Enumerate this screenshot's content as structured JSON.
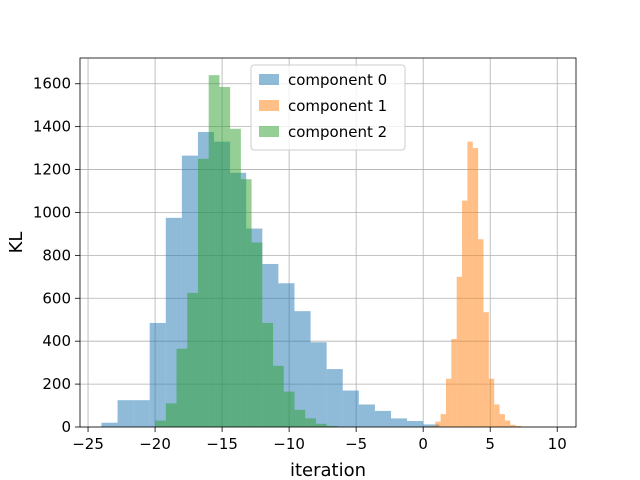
{
  "chart_data": {
    "type": "histogram",
    "xlabel": "iteration",
    "ylabel": "KL",
    "xlim": [
      -25.6,
      11.4
    ],
    "ylim": [
      0,
      1720
    ],
    "xticks": [
      -25,
      -20,
      -15,
      -10,
      -5,
      0,
      5,
      10
    ],
    "yticks": [
      0,
      200,
      400,
      600,
      800,
      1000,
      1200,
      1400,
      1600
    ],
    "grid": true,
    "legend_position": "upper center",
    "series": [
      {
        "name": "component 0",
        "color": "#1f77b4",
        "bins": [
          {
            "x0": -24.0,
            "x1": -22.8,
            "count": 20
          },
          {
            "x0": -22.8,
            "x1": -21.6,
            "count": 125
          },
          {
            "x0": -21.6,
            "x1": -20.4,
            "count": 125
          },
          {
            "x0": -20.4,
            "x1": -19.2,
            "count": 485
          },
          {
            "x0": -19.2,
            "x1": -18.0,
            "count": 975
          },
          {
            "x0": -18.0,
            "x1": -16.8,
            "count": 1265
          },
          {
            "x0": -16.8,
            "x1": -15.6,
            "count": 1375
          },
          {
            "x0": -15.6,
            "x1": -14.4,
            "count": 1330
          },
          {
            "x0": -14.4,
            "x1": -13.2,
            "count": 1185
          },
          {
            "x0": -13.2,
            "x1": -12.0,
            "count": 925
          },
          {
            "x0": -12.0,
            "x1": -10.8,
            "count": 760
          },
          {
            "x0": -10.8,
            "x1": -9.6,
            "count": 670
          },
          {
            "x0": -9.6,
            "x1": -8.4,
            "count": 540
          },
          {
            "x0": -8.4,
            "x1": -7.2,
            "count": 395
          },
          {
            "x0": -7.2,
            "x1": -6.0,
            "count": 270
          },
          {
            "x0": -6.0,
            "x1": -4.8,
            "count": 170
          },
          {
            "x0": -4.8,
            "x1": -3.6,
            "count": 105
          },
          {
            "x0": -3.6,
            "x1": -2.4,
            "count": 75
          },
          {
            "x0": -2.4,
            "x1": -1.2,
            "count": 40
          },
          {
            "x0": -1.2,
            "x1": 0.0,
            "count": 28
          },
          {
            "x0": 0.0,
            "x1": 1.2,
            "count": 12
          }
        ]
      },
      {
        "name": "component 1",
        "color": "#ff7f0e",
        "bins": [
          {
            "x0": 0.5,
            "x1": 0.9,
            "count": 5
          },
          {
            "x0": 0.9,
            "x1": 1.3,
            "count": 25
          },
          {
            "x0": 1.3,
            "x1": 1.7,
            "count": 60
          },
          {
            "x0": 1.7,
            "x1": 2.1,
            "count": 225
          },
          {
            "x0": 2.1,
            "x1": 2.5,
            "count": 410
          },
          {
            "x0": 2.5,
            "x1": 2.9,
            "count": 700
          },
          {
            "x0": 2.9,
            "x1": 3.3,
            "count": 1055
          },
          {
            "x0": 3.3,
            "x1": 3.7,
            "count": 1330
          },
          {
            "x0": 3.7,
            "x1": 4.1,
            "count": 1300
          },
          {
            "x0": 4.1,
            "x1": 4.5,
            "count": 875
          },
          {
            "x0": 4.5,
            "x1": 4.9,
            "count": 535
          },
          {
            "x0": 4.9,
            "x1": 5.3,
            "count": 225
          },
          {
            "x0": 5.3,
            "x1": 5.7,
            "count": 105
          },
          {
            "x0": 5.7,
            "x1": 6.1,
            "count": 60
          },
          {
            "x0": 6.1,
            "x1": 6.5,
            "count": 30
          },
          {
            "x0": 6.5,
            "x1": 6.9,
            "count": 10
          },
          {
            "x0": 6.9,
            "x1": 7.3,
            "count": 5
          }
        ]
      },
      {
        "name": "component 2",
        "color": "#2ca02c",
        "bins": [
          {
            "x0": -20.0,
            "x1": -19.2,
            "count": 30
          },
          {
            "x0": -19.2,
            "x1": -18.4,
            "count": 110
          },
          {
            "x0": -18.4,
            "x1": -17.6,
            "count": 365
          },
          {
            "x0": -17.6,
            "x1": -16.8,
            "count": 625
          },
          {
            "x0": -16.8,
            "x1": -16.0,
            "count": 1250
          },
          {
            "x0": -16.0,
            "x1": -15.2,
            "count": 1640
          },
          {
            "x0": -15.2,
            "x1": -14.4,
            "count": 1585
          },
          {
            "x0": -14.4,
            "x1": -13.6,
            "count": 1390
          },
          {
            "x0": -13.6,
            "x1": -12.8,
            "count": 1155
          },
          {
            "x0": -12.8,
            "x1": -12.0,
            "count": 860
          },
          {
            "x0": -12.0,
            "x1": -11.2,
            "count": 485
          },
          {
            "x0": -11.2,
            "x1": -10.4,
            "count": 285
          },
          {
            "x0": -10.4,
            "x1": -9.6,
            "count": 165
          },
          {
            "x0": -9.6,
            "x1": -8.8,
            "count": 80
          },
          {
            "x0": -8.8,
            "x1": -8.0,
            "count": 40
          },
          {
            "x0": -8.0,
            "x1": -7.2,
            "count": 15
          },
          {
            "x0": -7.2,
            "x1": -6.4,
            "count": 5
          }
        ]
      }
    ]
  }
}
